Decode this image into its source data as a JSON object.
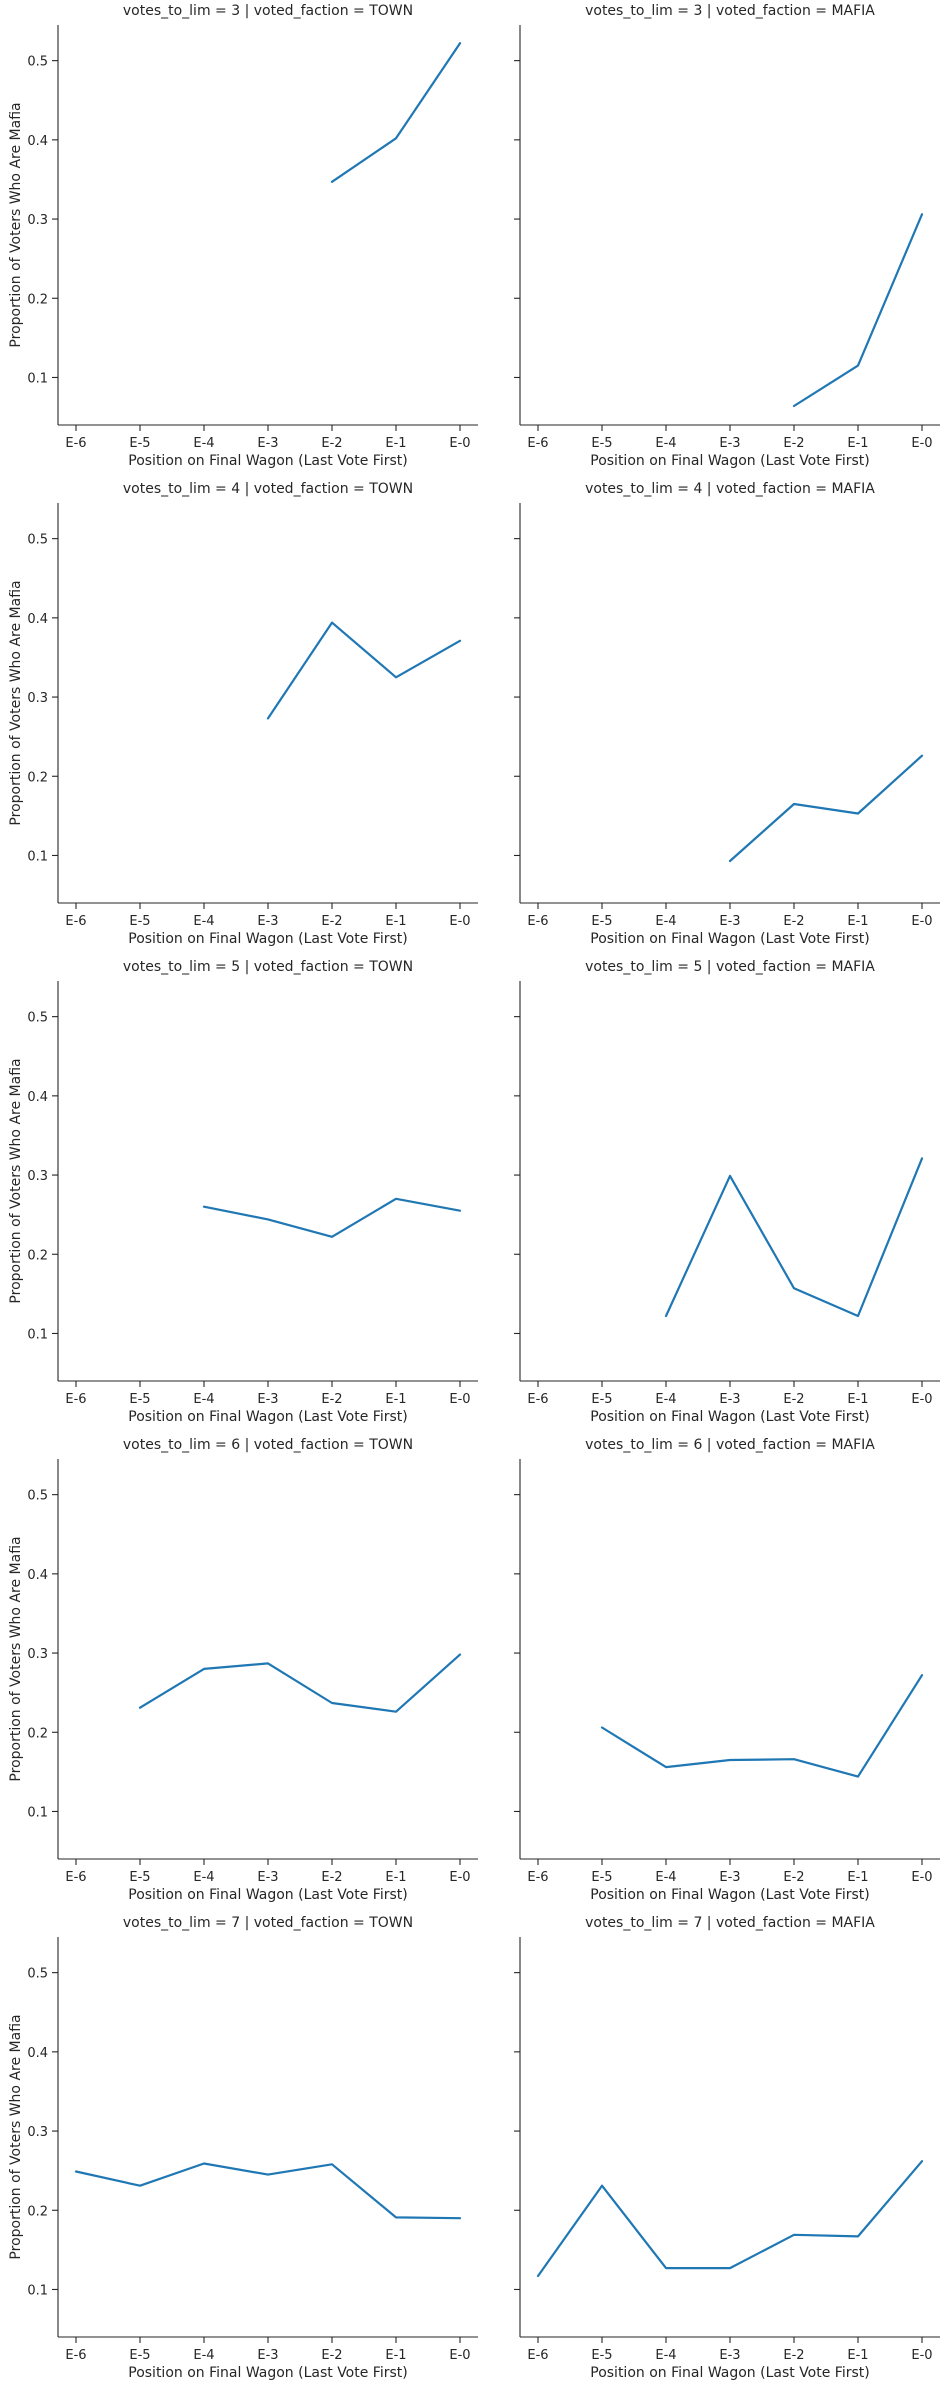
{
  "chart_data": {
    "type": "line",
    "layout": "facet-grid",
    "xlabel": "Position on Final Wagon (Last Vote First)",
    "ylabel": "Proportion of Voters Who Are Mafia",
    "x_categories": [
      "E-6",
      "E-5",
      "E-4",
      "E-3",
      "E-2",
      "E-1",
      "E-0"
    ],
    "ylim": [
      0.04,
      0.545
    ],
    "yticks": [
      0.1,
      0.2,
      0.3,
      0.4,
      0.5
    ],
    "ytick_labels": [
      "0.1",
      "0.2",
      "0.3",
      "0.4",
      "0.5"
    ],
    "sharey": true,
    "grid": false,
    "line_color": "#1f77b4",
    "panels": [
      {
        "title": "votes_to_lim = 3 | voted_faction = TOWN",
        "x": [
          "E-2",
          "E-1",
          "E-0"
        ],
        "y": [
          0.347,
          0.402,
          0.522
        ]
      },
      {
        "title": "votes_to_lim = 3 | voted_faction = MAFIA",
        "x": [
          "E-2",
          "E-1",
          "E-0"
        ],
        "y": [
          0.064,
          0.115,
          0.306
        ]
      },
      {
        "title": "votes_to_lim = 4 | voted_faction = TOWN",
        "x": [
          "E-3",
          "E-2",
          "E-1",
          "E-0"
        ],
        "y": [
          0.273,
          0.394,
          0.325,
          0.371
        ]
      },
      {
        "title": "votes_to_lim = 4 | voted_faction = MAFIA",
        "x": [
          "E-3",
          "E-2",
          "E-1",
          "E-0"
        ],
        "y": [
          0.093,
          0.165,
          0.153,
          0.226
        ]
      },
      {
        "title": "votes_to_lim = 5 | voted_faction = TOWN",
        "x": [
          "E-4",
          "E-3",
          "E-2",
          "E-1",
          "E-0"
        ],
        "y": [
          0.26,
          0.244,
          0.222,
          0.27,
          0.255
        ]
      },
      {
        "title": "votes_to_lim = 5 | voted_faction = MAFIA",
        "x": [
          "E-4",
          "E-3",
          "E-2",
          "E-1",
          "E-0"
        ],
        "y": [
          0.122,
          0.299,
          0.157,
          0.122,
          0.321
        ]
      },
      {
        "title": "votes_to_lim = 6 | voted_faction = TOWN",
        "x": [
          "E-5",
          "E-4",
          "E-3",
          "E-2",
          "E-1",
          "E-0"
        ],
        "y": [
          0.231,
          0.28,
          0.287,
          0.237,
          0.226,
          0.298
        ]
      },
      {
        "title": "votes_to_lim = 6 | voted_faction = MAFIA",
        "x": [
          "E-5",
          "E-4",
          "E-3",
          "E-2",
          "E-1",
          "E-0"
        ],
        "y": [
          0.206,
          0.156,
          0.165,
          0.166,
          0.144,
          0.272
        ]
      },
      {
        "title": "votes_to_lim = 7 | voted_faction = TOWN",
        "x": [
          "E-6",
          "E-5",
          "E-4",
          "E-3",
          "E-2",
          "E-1",
          "E-0"
        ],
        "y": [
          0.249,
          0.231,
          0.259,
          0.245,
          0.258,
          0.191,
          0.19
        ]
      },
      {
        "title": "votes_to_lim = 7 | voted_faction = MAFIA",
        "x": [
          "E-6",
          "E-5",
          "E-4",
          "E-3",
          "E-2",
          "E-1",
          "E-0"
        ],
        "y": [
          0.117,
          0.231,
          0.127,
          0.127,
          0.169,
          0.167,
          0.262
        ]
      }
    ]
  }
}
